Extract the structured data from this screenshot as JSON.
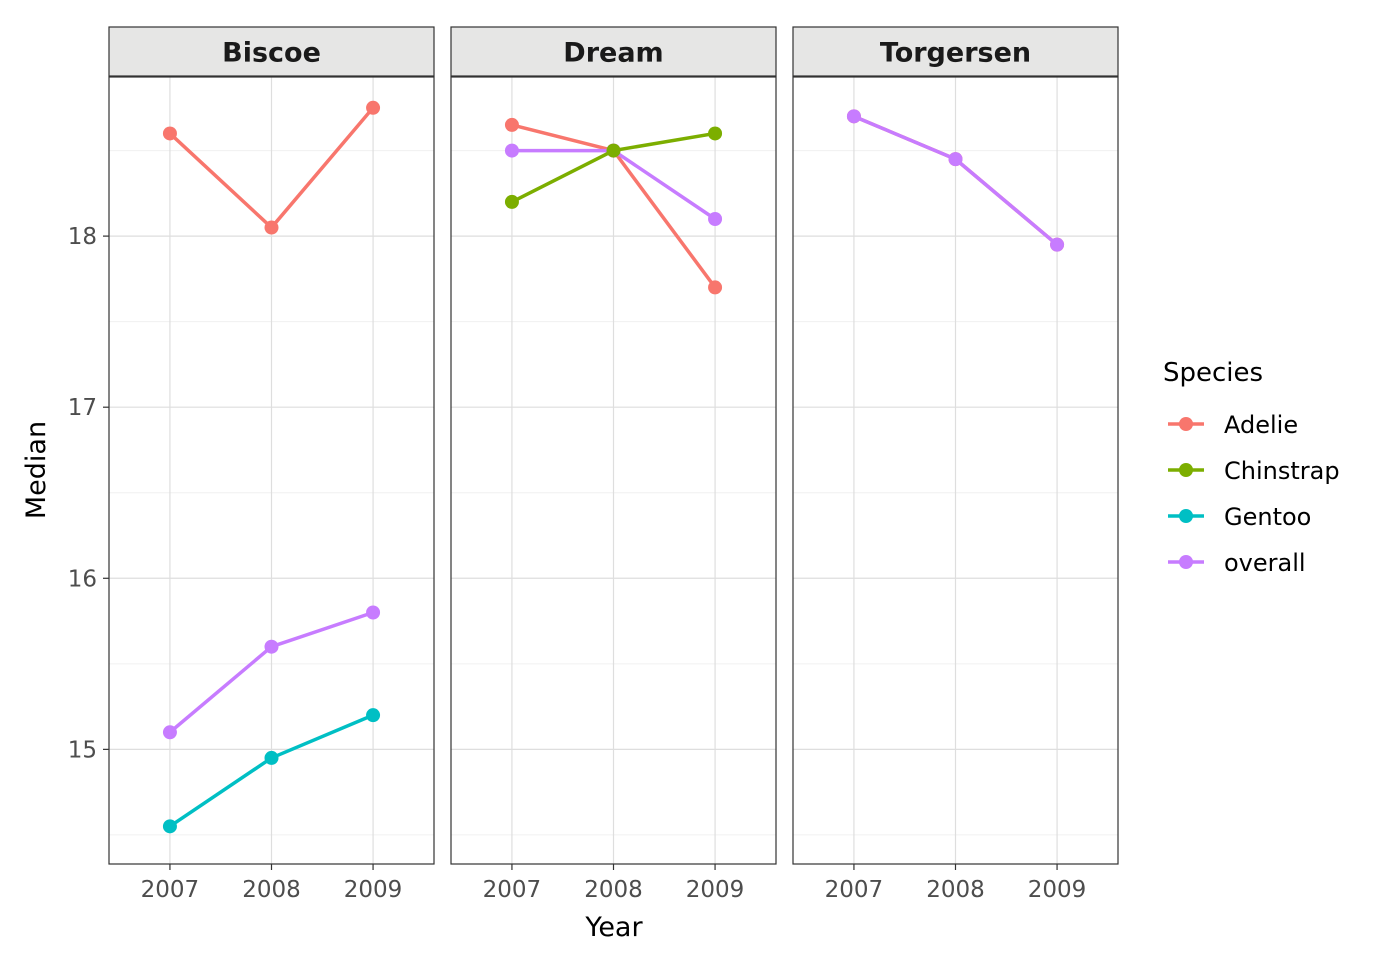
{
  "chart_data": {
    "type": "line",
    "xlabel": "Year",
    "ylabel": "Median",
    "x_ticks": [
      2007,
      2008,
      2009
    ],
    "x_tick_labels": [
      "2007",
      "2008",
      "2009"
    ],
    "y_ticks": [
      15,
      16,
      17,
      18
    ],
    "y_tick_labels": [
      "15",
      "16",
      "17",
      "18"
    ],
    "ylim": [
      14.33,
      18.93
    ],
    "xlim": [
      2006.4,
      2009.6
    ],
    "grid": true,
    "legend": {
      "title": "Species",
      "position": "right",
      "entries": [
        "Adelie",
        "Chinstrap",
        "Gentoo",
        "overall"
      ]
    },
    "colors": {
      "Adelie": "#F8766D",
      "Chinstrap": "#7CAE00",
      "Gentoo": "#00BFC4",
      "overall": "#C77CFF"
    },
    "panels": [
      {
        "name": "Biscoe",
        "series": [
          {
            "name": "Adelie",
            "x": [
              2007,
              2008,
              2009
            ],
            "values": [
              18.6,
              18.05,
              18.75
            ]
          },
          {
            "name": "overall",
            "x": [
              2007,
              2008,
              2009
            ],
            "values": [
              15.1,
              15.6,
              15.8
            ]
          },
          {
            "name": "Gentoo",
            "x": [
              2007,
              2008,
              2009
            ],
            "values": [
              14.55,
              14.95,
              15.2
            ]
          }
        ]
      },
      {
        "name": "Dream",
        "series": [
          {
            "name": "Adelie",
            "x": [
              2007,
              2008,
              2009
            ],
            "values": [
              18.65,
              18.5,
              17.7
            ]
          },
          {
            "name": "overall",
            "x": [
              2007,
              2008,
              2009
            ],
            "values": [
              18.5,
              18.5,
              18.1
            ]
          },
          {
            "name": "Chinstrap",
            "x": [
              2007,
              2008,
              2009
            ],
            "values": [
              18.2,
              18.5,
              18.6
            ]
          }
        ]
      },
      {
        "name": "Torgersen",
        "series": [
          {
            "name": "Adelie",
            "x": [
              2007,
              2008,
              2009
            ],
            "values": [
              18.7,
              18.45,
              17.95
            ]
          },
          {
            "name": "overall",
            "x": [
              2007,
              2008,
              2009
            ],
            "values": [
              18.7,
              18.45,
              17.95
            ]
          }
        ]
      }
    ]
  }
}
